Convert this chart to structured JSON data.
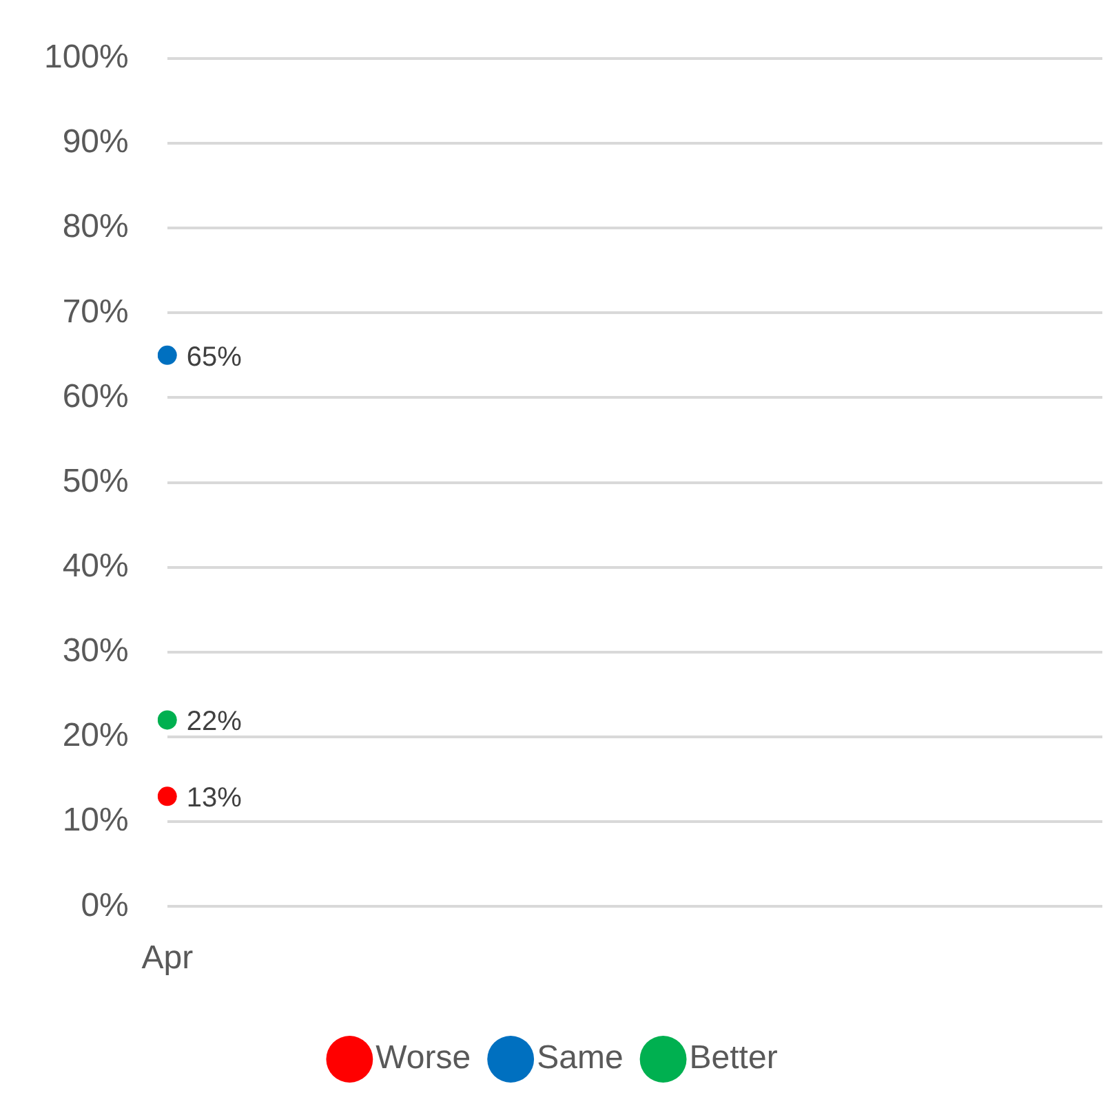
{
  "chart_data": {
    "type": "line",
    "categories": [
      "Apr"
    ],
    "series": [
      {
        "name": "Worse",
        "color": "#ff0000",
        "values": [
          13
        ],
        "value_labels": [
          "13%"
        ]
      },
      {
        "name": "Same",
        "color": "#0070c0",
        "values": [
          65
        ],
        "value_labels": [
          "65%"
        ]
      },
      {
        "name": "Better",
        "color": "#00b050",
        "values": [
          22
        ],
        "value_labels": [
          "22%"
        ]
      }
    ],
    "ylim": [
      0,
      100
    ],
    "yticks": [
      {
        "value": 0,
        "label": "0%"
      },
      {
        "value": 10,
        "label": "10%"
      },
      {
        "value": 20,
        "label": "20%"
      },
      {
        "value": 30,
        "label": "30%"
      },
      {
        "value": 40,
        "label": "40%"
      },
      {
        "value": 50,
        "label": "50%"
      },
      {
        "value": 60,
        "label": "60%"
      },
      {
        "value": 70,
        "label": "70%"
      },
      {
        "value": 80,
        "label": "80%"
      },
      {
        "value": 90,
        "label": "90%"
      },
      {
        "value": 100,
        "label": "100%"
      }
    ],
    "grid": "y",
    "legend": "bottom",
    "marker": "circle"
  }
}
